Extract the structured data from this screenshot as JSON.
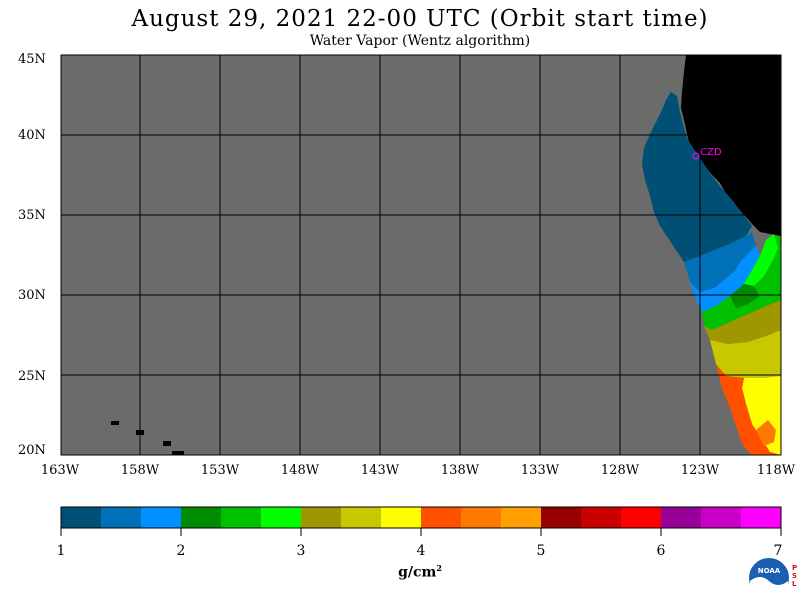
{
  "title": "August 29, 2021  22-00 UTC  (Orbit start time)",
  "subtitle": "Water Vapor (Wentz algorithm)",
  "lat_labels": [
    "45N",
    "40N",
    "35N",
    "30N",
    "25N",
    "20N"
  ],
  "lon_labels": [
    "163W",
    "158W",
    "153W",
    "148W",
    "143W",
    "138W",
    "133W",
    "128W",
    "123W",
    "118W"
  ],
  "station_label": "CZD",
  "colorbar": {
    "colors": [
      "#004f74",
      "#0070b8",
      "#0090ff",
      "#008c00",
      "#00c000",
      "#00ff00",
      "#a09600",
      "#c8c800",
      "#ffff00",
      "#ff5000",
      "#ff7800",
      "#ffa000",
      "#960000",
      "#c80000",
      "#ff0000",
      "#960096",
      "#c800c8",
      "#ff00ff"
    ],
    "tick_labels": [
      "1",
      "2",
      "3",
      "4",
      "5",
      "6",
      "7"
    ],
    "units_base": "g/cm",
    "units_exp": "2"
  },
  "colors": {
    "ocean_nodata": "#6b6b6b",
    "land": "#000000",
    "grid": "#000000",
    "station": "#ff00ff"
  },
  "logo": {
    "text": "NOAA",
    "side_text": "PSL"
  }
}
